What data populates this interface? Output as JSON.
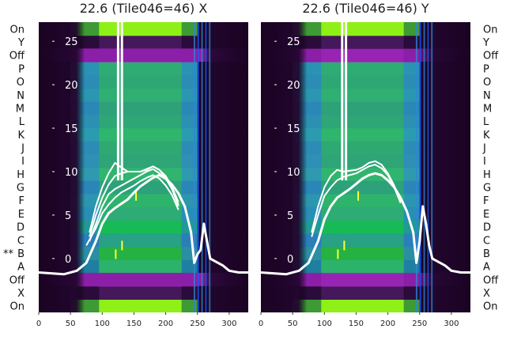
{
  "chart_data": [
    {
      "type": "heatmap",
      "title": "22.6 (Tile046=46) X",
      "xlim": [
        0,
        330
      ],
      "xticks": [
        0,
        50,
        100,
        150,
        200,
        250,
        300
      ],
      "yticks": [
        0,
        5,
        10,
        15,
        20,
        25
      ],
      "ylim": [
        -6.2,
        27.2
      ],
      "row_labels": [
        "On",
        "X",
        "Off",
        "A",
        "B",
        "C",
        "D",
        "E",
        "F",
        "G",
        "H",
        "I",
        "J",
        "K",
        "L",
        "M",
        "N",
        "O",
        "P",
        "Off",
        "Y",
        "On"
      ],
      "row_marker": {
        "row": "B",
        "text": "**"
      },
      "overlay_series": [
        {
          "x": [
            0,
            20,
            40,
            60,
            75,
            90,
            100,
            110,
            120,
            130,
            140,
            150,
            160,
            170,
            180,
            190,
            200,
            210,
            220,
            230,
            240,
            245,
            250,
            255,
            260,
            265,
            270,
            280,
            290,
            300,
            315,
            330
          ],
          "y": [
            -1.6,
            -1.7,
            -1.8,
            -1.4,
            -0.5,
            2,
            4,
            5.2,
            5.8,
            6.3,
            6.8,
            7.6,
            8.3,
            8.8,
            9.3,
            9.6,
            9.2,
            8.5,
            7.5,
            6,
            3,
            -0.5,
            0.5,
            1,
            4,
            2,
            0,
            -0.4,
            -0.8,
            -1.4,
            -1.6,
            -1.6
          ]
        },
        {
          "x": [
            80,
            90,
            100,
            110,
            120,
            130,
            140,
            150,
            160,
            170,
            180,
            190,
            200,
            210,
            220
          ],
          "y": [
            2,
            4,
            6,
            7.4,
            8,
            8.4,
            8.8,
            9.2,
            9.6,
            10,
            10.3,
            9.8,
            9.2,
            8,
            6.2
          ]
        },
        {
          "x": [
            80,
            90,
            100,
            110,
            120,
            130,
            140,
            150,
            160,
            170,
            180,
            190,
            200,
            210,
            220
          ],
          "y": [
            2.5,
            5,
            7,
            8.5,
            9.5,
            9.8,
            10,
            10,
            10,
            10.3,
            10.6,
            10.2,
            9.5,
            8.2,
            6.5
          ]
        },
        {
          "x": [
            80,
            90,
            100,
            110,
            120,
            130,
            140,
            150,
            160,
            170,
            180,
            190,
            200,
            210,
            220
          ],
          "y": [
            3,
            6,
            8.2,
            9.8,
            11,
            10.5,
            10,
            10,
            10,
            10.2,
            10.6,
            10.2,
            9.3,
            8,
            6
          ]
        },
        {
          "x": [
            75,
            90,
            100,
            110,
            120,
            130,
            140,
            150,
            160,
            170,
            180,
            190,
            200,
            210,
            220
          ],
          "y": [
            1.5,
            3.5,
            5.2,
            6.2,
            7,
            7.6,
            8,
            8.4,
            8.9,
            9.3,
            9.6,
            9.2,
            8.4,
            7.3,
            5.6
          ]
        }
      ],
      "spikes": [
        {
          "x": 125,
          "y_top": 27.2
        },
        {
          "x": 131,
          "y_top": 27.2
        }
      ]
    },
    {
      "type": "heatmap",
      "title": "22.6 (Tile046=46) Y",
      "xlim": [
        0,
        330
      ],
      "xticks": [
        0,
        50,
        100,
        150,
        200,
        250,
        300
      ],
      "yticks": [
        0,
        5,
        10,
        15,
        20,
        25
      ],
      "ylim": [
        -6.2,
        27.2
      ],
      "row_labels": [
        "On",
        "X",
        "Off",
        "A",
        "B",
        "C",
        "D",
        "E",
        "F",
        "G",
        "H",
        "I",
        "J",
        "K",
        "L",
        "M",
        "N",
        "O",
        "P",
        "Off",
        "Y",
        "On"
      ],
      "overlay_series": [
        {
          "x": [
            0,
            20,
            40,
            60,
            75,
            90,
            100,
            110,
            120,
            130,
            140,
            150,
            160,
            170,
            180,
            190,
            200,
            210,
            220,
            230,
            240,
            245,
            250,
            255,
            260,
            265,
            270,
            280,
            290,
            300,
            315,
            330
          ],
          "y": [
            -1.6,
            -1.7,
            -1.8,
            -1.4,
            -0.5,
            2,
            4.5,
            6,
            7,
            7.5,
            8,
            8.6,
            9.2,
            9.6,
            9.8,
            9.6,
            9,
            8.2,
            7,
            5.4,
            3,
            -0.5,
            2,
            6,
            4,
            1.5,
            0,
            -0.4,
            -0.8,
            -1.4,
            -1.6,
            -1.6
          ]
        },
        {
          "x": [
            80,
            90,
            100,
            110,
            120,
            130,
            140,
            150,
            160,
            170,
            180,
            190,
            200,
            210,
            220
          ],
          "y": [
            2.5,
            5,
            7.2,
            8.2,
            9,
            9.4,
            9.6,
            9.8,
            10.2,
            10.6,
            10.8,
            10.4,
            9.6,
            8.2,
            6.4
          ]
        },
        {
          "x": [
            80,
            90,
            100,
            110,
            120,
            130,
            140,
            150,
            160,
            170,
            180,
            190,
            200,
            210,
            220
          ],
          "y": [
            3,
            6,
            8.2,
            9.5,
            10.2,
            10,
            10.1,
            10.2,
            10.5,
            11,
            11.2,
            10.8,
            9.8,
            8.4,
            6.6
          ]
        }
      ],
      "spikes": [
        {
          "x": 128,
          "y_top": 27.2
        },
        {
          "x": 134,
          "y_top": 27.2
        }
      ]
    }
  ]
}
